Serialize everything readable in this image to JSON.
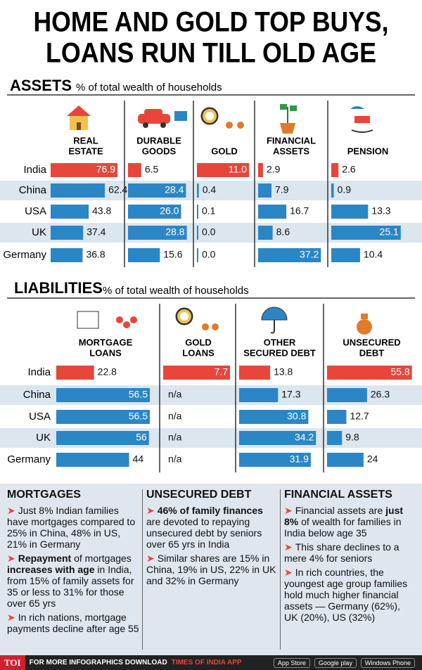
{
  "title_lines": [
    "HOME AND GOLD TOP BUYS,",
    "LOANS RUN TILL OLD AGE"
  ],
  "highlight_color": "#e8463a",
  "color": "#2b86c5",
  "assets": {
    "title": "ASSETS",
    "subtitle": "% of total wealth of households",
    "countries": [
      "India",
      "China",
      "USA",
      "UK",
      "Germany"
    ],
    "columns": [
      {
        "label": [
          "REAL",
          "ESTATE"
        ],
        "values": [
          76.9,
          62.4,
          43.8,
          37.4,
          36.8
        ]
      },
      {
        "label": [
          "DURABLE",
          "GOODS"
        ],
        "values": [
          6.5,
          28.4,
          26.0,
          28.8,
          15.6
        ],
        "value_labels": [
          "6.5",
          "28.4",
          "26.0",
          "28.8",
          "15.6"
        ]
      },
      {
        "label": [
          "GOLD"
        ],
        "values": [
          11.0,
          0.4,
          0.1,
          0.0,
          0.0
        ],
        "value_labels": [
          "11.0",
          "0.4",
          "0.1",
          "0.0",
          "0.0"
        ]
      },
      {
        "label": [
          "FINANCIAL",
          "ASSETS"
        ],
        "values": [
          2.9,
          7.9,
          16.7,
          8.6,
          37.2
        ]
      },
      {
        "label": [
          "PENSION"
        ],
        "values": [
          2.6,
          0.9,
          13.3,
          25.1,
          10.4
        ]
      }
    ]
  },
  "liabilities": {
    "title": "LIABILITIES",
    "subtitle": "% of total wealth of households",
    "countries": [
      "India",
      "China",
      "USA",
      "UK",
      "Germany"
    ],
    "columns": [
      {
        "label": [
          "MORTGAGE",
          "LOANS"
        ],
        "values": [
          22.8,
          56.5,
          56.5,
          56,
          44
        ]
      },
      {
        "label": [
          "GOLD",
          "LOANS"
        ],
        "values": [
          7.7,
          null,
          null,
          null,
          null
        ],
        "value_labels": [
          "7.7",
          "n/a",
          "n/a",
          "n/a",
          "n/a"
        ]
      },
      {
        "label": [
          "OTHER",
          "SECURED DEBT"
        ],
        "values": [
          13.8,
          17.3,
          30.8,
          34.2,
          31.9
        ]
      },
      {
        "label": [
          "UNSECURED",
          "DEBT"
        ],
        "values": [
          55.8,
          26.3,
          12.7,
          9.8,
          24
        ]
      }
    ]
  },
  "notes": [
    {
      "heading": "MORTGAGES",
      "bullets": [
        [
          "Just 8% Indian families have mortgages compared to 25% in China, 48% in US, 21% in Germany"
        ],
        [
          {
            "text": "Repayment",
            "bold": true
          },
          " of mortgages ",
          {
            "text": "increases with age",
            "bold": true
          },
          " in India, from 15% of family assets for 35 or less to 31% for those over 65 yrs"
        ],
        [
          "In rich nations, mortgage payments decline after age 55"
        ]
      ]
    },
    {
      "heading": "UNSECURED DEBT",
      "bullets": [
        [
          {
            "text": "46% of family finances",
            "bold": true
          },
          " are devoted to repaying unsecured debt by seniors over 65 yrs in India"
        ],
        [
          "Similar shares are 15% in China, 19% in US, 22% in UK and 32% in Germany"
        ]
      ]
    },
    {
      "heading": "FINANCIAL ASSETS",
      "bullets": [
        [
          "Financial assets are ",
          {
            "text": "just 8%",
            "bold": true
          },
          " of wealth for families in India below age 35"
        ],
        [
          "This share declines to a mere 4% for seniors"
        ],
        [
          "In rich countries, the youngest age group families hold much higher financial assets — Germany (62%), UK (20%), US (32%)"
        ]
      ]
    }
  ],
  "footer": {
    "brand": "TOI",
    "text": "FOR MORE INFOGRAPHICS DOWNLOAD",
    "app": "TIMES OF INDIA APP",
    "badges": [
      "App Store",
      "Google play",
      "Windows Phone"
    ]
  }
}
